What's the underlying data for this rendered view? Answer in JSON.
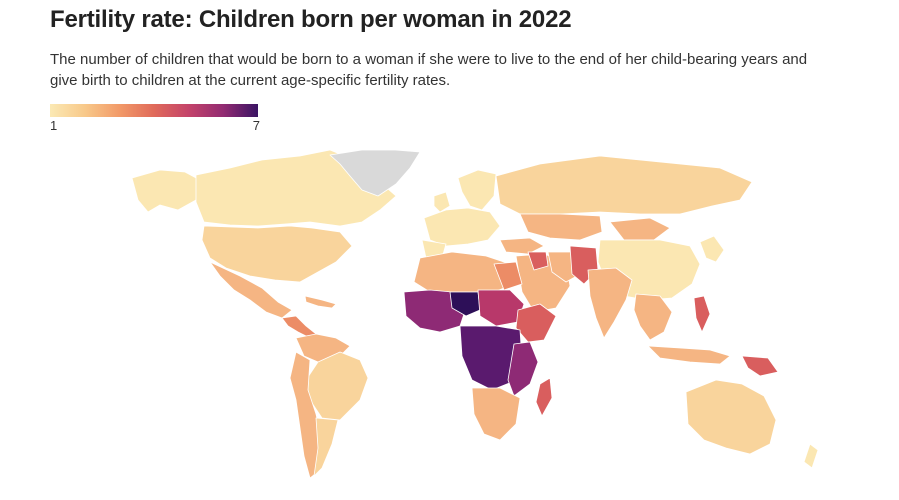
{
  "header": {
    "title": "Fertility rate: Children born per woman in 2022",
    "subtitle": "The number of children that would be born to a woman if she were to live to the end of her child-bearing years and give birth to children at the current age-specific fertility rates."
  },
  "legend": {
    "min_label": "1",
    "max_label": "7",
    "min_value": 1,
    "max_value": 7,
    "color_scale": [
      "#fbe9b4",
      "#f8c98a",
      "#f29a68",
      "#e06a5a",
      "#c4436a",
      "#922b72",
      "#3a1464"
    ],
    "no_data_color": "#d9d9d9"
  },
  "colors": {
    "very_low": "#fbe7b2",
    "low": "#f9d49c",
    "mid_low": "#f5b583",
    "mid": "#ec8c66",
    "mid_high": "#d95e5e",
    "high": "#b8386a",
    "very_high": "#8e2a75",
    "extreme": "#5a1a6e",
    "max": "#2d0f58",
    "no_data": "#d9d9d9"
  }
}
